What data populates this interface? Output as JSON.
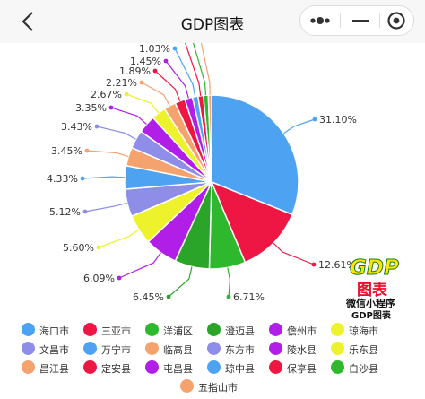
{
  "nav": {
    "title": "GDP图表"
  },
  "logo": {
    "gdp": "GDP",
    "biao": "图表",
    "line1": "微信小程序",
    "line2": "GDP图表"
  },
  "chart_data": {
    "type": "pie",
    "title": "",
    "legend_placement": "bottom",
    "unit": "%",
    "slices": [
      {
        "name": "海口市",
        "value": 31.1,
        "label": "31.10%",
        "color": "#4da3f2"
      },
      {
        "name": "三亚市",
        "value": 12.61,
        "label": "12.61%",
        "color": "#ee1744"
      },
      {
        "name": "洋浦区",
        "value": 6.71,
        "label": "6.71%",
        "color": "#2eb82e"
      },
      {
        "name": "澄迈县",
        "value": 6.45,
        "label": "6.45%",
        "color": "#2aa52a"
      },
      {
        "name": "儋州市",
        "value": 6.09,
        "label": "6.09%",
        "color": "#b01ee8"
      },
      {
        "name": "琼海市",
        "value": 5.6,
        "label": "5.60%",
        "color": "#eef22c"
      },
      {
        "name": "文昌市",
        "value": 5.12,
        "label": "5.12%",
        "color": "#8e8ee8"
      },
      {
        "name": "万宁市",
        "value": 4.33,
        "label": "4.33%",
        "color": "#4da3f2"
      },
      {
        "name": "临高县",
        "value": 3.45,
        "label": "3.45%",
        "color": "#f4a36e"
      },
      {
        "name": "东方市",
        "value": 3.43,
        "label": "3.43%",
        "color": "#8e8ee8"
      },
      {
        "name": "陵水县",
        "value": 3.35,
        "label": "3.35%",
        "color": "#b01ee8"
      },
      {
        "name": "乐东县",
        "value": 2.67,
        "label": "2.67%",
        "color": "#eef22c"
      },
      {
        "name": "昌江县",
        "value": 2.21,
        "label": "2.21%",
        "color": "#f4a36e"
      },
      {
        "name": "定安县",
        "value": 1.89,
        "label": "1.89%",
        "color": "#ee1744"
      },
      {
        "name": "屯昌县",
        "value": 1.45,
        "label": "1.45%",
        "color": "#b01ee8"
      },
      {
        "name": "琼中县",
        "value": 1.03,
        "label": "1.03%",
        "color": "#4da3f2"
      },
      {
        "name": "保亭县",
        "value": 0.98,
        "label": "",
        "color": "#ee1744"
      },
      {
        "name": "白沙县",
        "value": 0.92,
        "label": "",
        "color": "#2eb82e"
      },
      {
        "name": "五指山市",
        "value": 0.61,
        "label": "",
        "color": "#f4a36e"
      }
    ]
  }
}
